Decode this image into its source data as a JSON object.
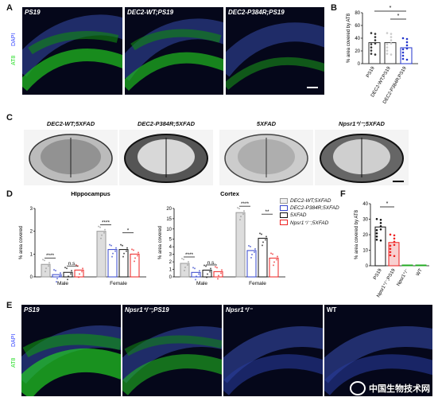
{
  "panels": {
    "a": "A",
    "b": "B",
    "c": "C",
    "d": "D",
    "e": "E",
    "f": "F"
  },
  "row_a": {
    "channel_dapi": "DAPI",
    "channel_at8": "AT8",
    "images": [
      "PS19",
      "DEC2-WT;PS19",
      "DEC2-P384R;PS19"
    ]
  },
  "panel_b": {
    "ylabel": "% area covered by AT8",
    "categories": [
      "PS19",
      "DEC2-WT;PS19",
      "DEC2-P384R;PS19"
    ],
    "sig": [
      "*",
      "*"
    ]
  },
  "panel_c": {
    "brains": [
      "DEC2-WT;5XFAD",
      "DEC2-P384R;5XFAD",
      "5XFAD",
      "Npsr1⁺/⁻;5XFAD"
    ]
  },
  "panel_d": {
    "hippo_title": "HIppocampus",
    "cortex_title": "Cortex",
    "ylabel": "% area covered",
    "groups": [
      "Male",
      "Female"
    ],
    "legend": [
      "DEC2-WT;5XFAD",
      "DEC2-P384R;5XFAD",
      "5XFAD",
      "Npsr1⁺/⁻;5XFAD"
    ],
    "hippo_sig": [
      "****",
      "n.s.",
      "****",
      "*"
    ],
    "cortex_sig": [
      "****",
      "n.s.",
      "****",
      "**"
    ]
  },
  "panel_f": {
    "ylabel": "% area covered by AT8",
    "categories": [
      "PS19",
      "Npsr1⁺/⁻;PS19",
      "Npsr1⁺/⁻",
      "WT"
    ],
    "sig": "*"
  },
  "row_e": {
    "channel_dapi": "DAPI",
    "channel_at8": "AT8",
    "images": [
      "PS19",
      "Npsr1⁺/⁻;PS19",
      "Npsr1⁺/⁻",
      "WT"
    ]
  },
  "chart_data": [
    {
      "type": "bar",
      "categories": [
        "PS19",
        "DEC2-WT;PS19",
        "DEC2-P384R;PS19"
      ],
      "values": [
        33,
        33,
        25
      ],
      "ylabel": "% area covered by AT8",
      "ylim": [
        0,
        80
      ],
      "yticks": [
        0,
        20,
        40,
        60,
        80
      ]
    },
    {
      "type": "bar",
      "title": "HIppocampus",
      "categories": [
        "Male",
        "Female"
      ],
      "series": [
        {
          "name": "DEC2-WT;5XFAD",
          "values": [
            0.55,
            2.0
          ]
        },
        {
          "name": "DEC2-P384R;5XFAD",
          "values": [
            0.1,
            1.2
          ]
        },
        {
          "name": "5XFAD",
          "values": [
            0.2,
            1.2
          ]
        },
        {
          "name": "Npsr1⁺/⁻;5XFAD",
          "values": [
            0.3,
            1.0
          ]
        }
      ],
      "ylabel": "% area covered",
      "ylim": [
        0,
        3
      ],
      "yticks": [
        0,
        1,
        2,
        3
      ]
    },
    {
      "type": "bar",
      "title": "Cortex",
      "categories": [
        "Male",
        "Female"
      ],
      "series": [
        {
          "name": "DEC2-WT;5XFAD",
          "values": [
            1.8,
            18
          ]
        },
        {
          "name": "DEC2-P384R;5XFAD",
          "values": [
            0.6,
            3.5
          ]
        },
        {
          "name": "5XFAD",
          "values": [
            0.9,
            5.5
          ]
        },
        {
          "name": "Npsr1⁺/⁻;5XFAD",
          "values": [
            0.7,
            2.5
          ]
        }
      ],
      "ylabel": "% area covered",
      "ylim": [
        0,
        20
      ],
      "yticks": [
        0,
        1,
        2,
        3,
        4,
        5,
        10,
        15,
        20
      ]
    },
    {
      "type": "bar",
      "categories": [
        "PS19",
        "Npsr1⁺/⁻;PS19",
        "Npsr1⁺/⁻",
        "WT"
      ],
      "values": [
        25,
        15,
        0.5,
        0.5
      ],
      "ylabel": "% area covered by AT8",
      "ylim": [
        0,
        40
      ],
      "yticks": [
        0,
        10,
        20,
        30,
        40
      ]
    }
  ],
  "watermark": "中国生物技术网"
}
